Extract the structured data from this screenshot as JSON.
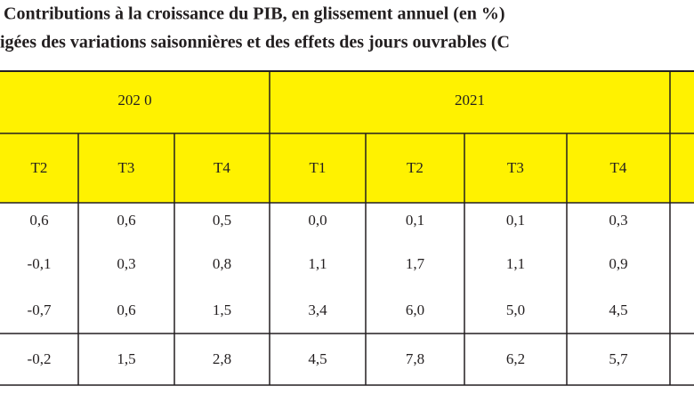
{
  "title_lines": [
    "Contributions à la croissance du PIB, en glissement annuel (en %)",
    "igées des variations saisonnières et des effets des jours ouvrables (C"
  ],
  "table": {
    "year_headers": [
      "202 0",
      "2021"
    ],
    "quarter_headers": [
      "T2",
      "T3",
      "T4",
      "T1",
      "T2",
      "T3",
      "T4"
    ],
    "rows": [
      [
        "0,6",
        "0,6",
        "0,5",
        "0,0",
        "0,1",
        "0,1",
        "0,3"
      ],
      [
        "-0,1",
        "0,3",
        "0,8",
        "1,1",
        "1,7",
        "1,1",
        "0,9"
      ],
      [
        "-0,7",
        "0,6",
        "1,5",
        "3,4",
        "6,0",
        "5,0",
        "4,5"
      ],
      [
        "-0,2",
        "1,5",
        "2,8",
        "4,5",
        "7,8",
        "6,2",
        "5,7"
      ]
    ]
  }
}
